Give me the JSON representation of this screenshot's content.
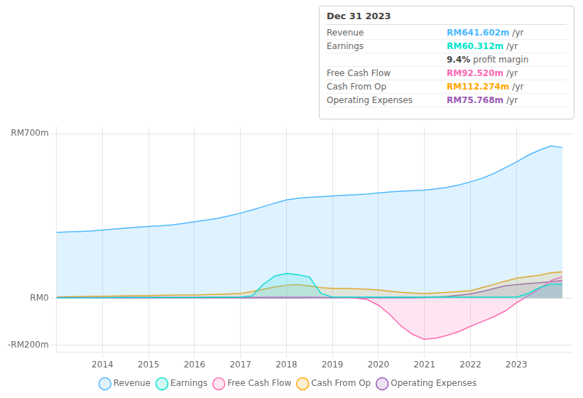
{
  "chart_data": {
    "type": "area",
    "x": [
      2013.0,
      2013.25,
      2013.5,
      2013.75,
      2014.0,
      2014.25,
      2014.5,
      2014.75,
      2015.0,
      2015.25,
      2015.5,
      2015.75,
      2016.0,
      2016.25,
      2016.5,
      2016.75,
      2017.0,
      2017.25,
      2017.5,
      2017.75,
      2018.0,
      2018.25,
      2018.5,
      2018.75,
      2019.0,
      2019.25,
      2019.5,
      2019.75,
      2020.0,
      2020.25,
      2020.5,
      2020.75,
      2021.0,
      2021.25,
      2021.5,
      2021.75,
      2022.0,
      2022.25,
      2022.5,
      2022.75,
      2023.0,
      2023.25,
      2023.5,
      2023.75,
      2024.0
    ],
    "series": [
      {
        "name": "Revenue",
        "color": "#4db8ff",
        "values": [
          280,
          282,
          284,
          286,
          290,
          294,
          298,
          302,
          306,
          308,
          312,
          318,
          325,
          332,
          340,
          350,
          362,
          375,
          390,
          405,
          418,
          425,
          430,
          432,
          435,
          438,
          440,
          443,
          448,
          452,
          455,
          458,
          460,
          465,
          472,
          482,
          495,
          510,
          530,
          555,
          580,
          608,
          630,
          648,
          641
        ]
      },
      {
        "name": "Earnings",
        "color": "#00e5cc",
        "values": [
          2,
          2,
          2,
          2,
          2,
          3,
          3,
          3,
          3,
          3,
          3,
          3,
          3,
          4,
          4,
          4,
          5,
          10,
          60,
          95,
          105,
          100,
          90,
          20,
          5,
          5,
          5,
          5,
          5,
          5,
          5,
          5,
          5,
          5,
          5,
          5,
          5,
          5,
          5,
          5,
          5,
          20,
          45,
          60,
          60
        ]
      },
      {
        "name": "Free Cash Flow",
        "color": "#ff69b4",
        "values": [
          3,
          3,
          3,
          3,
          3,
          3,
          4,
          4,
          4,
          4,
          4,
          4,
          4,
          4,
          4,
          4,
          4,
          4,
          4,
          5,
          5,
          5,
          5,
          4,
          3,
          2,
          0,
          -5,
          -30,
          -70,
          -120,
          -155,
          -175,
          -170,
          -158,
          -142,
          -120,
          -100,
          -80,
          -55,
          -20,
          10,
          40,
          75,
          92
        ]
      },
      {
        "name": "Cash From Op",
        "color": "#ffa500",
        "values": [
          5,
          6,
          7,
          8,
          8,
          9,
          10,
          11,
          11,
          12,
          13,
          14,
          14,
          15,
          16,
          18,
          20,
          28,
          38,
          48,
          55,
          58,
          52,
          45,
          42,
          42,
          40,
          38,
          35,
          30,
          25,
          22,
          20,
          22,
          25,
          28,
          32,
          45,
          58,
          72,
          85,
          92,
          98,
          108,
          112
        ]
      },
      {
        "name": "Operating Expenses",
        "color": "#9b59b6",
        "values": [
          1,
          1,
          1,
          1,
          1,
          1,
          1,
          1,
          1,
          1,
          1,
          1,
          1,
          1,
          1,
          1,
          1,
          1,
          1,
          1,
          1,
          1,
          2,
          2,
          2,
          2,
          2,
          2,
          2,
          2,
          2,
          2,
          3,
          5,
          8,
          12,
          18,
          28,
          40,
          52,
          58,
          62,
          66,
          70,
          75
        ]
      }
    ],
    "xlim": [
      2013.0,
      2024.2
    ],
    "xticks": [
      2014,
      2015,
      2016,
      2017,
      2018,
      2019,
      2020,
      2021,
      2022,
      2023
    ],
    "ylim": [
      -230,
      730
    ],
    "yticks": [
      {
        "value": -200,
        "label": "-RM200m"
      },
      {
        "value": 0,
        "label": "RM0"
      },
      {
        "value": 700,
        "label": "RM700m"
      }
    ],
    "grid": true,
    "legend": "bottom",
    "annotations": [
      {
        "title": "Dec 31 2023",
        "rows": [
          {
            "label": "Revenue",
            "text": "RM641.602m",
            "unit": "/yr",
            "color": "#4db8ff"
          },
          {
            "label": "Earnings",
            "text": "RM60.312m",
            "unit": "/yr",
            "color": "#00e5cc"
          },
          {
            "text": "9.4%",
            "unit": "profit margin"
          },
          {
            "label": "Free Cash Flow",
            "text": "RM92.520m",
            "unit": "/yr",
            "color": "#ff69b4"
          },
          {
            "label": "Cash From Op",
            "text": "RM112.274m",
            "unit": "/yr",
            "color": "#ffa500"
          },
          {
            "label": "Operating Expenses",
            "text": "RM75.768m",
            "unit": "/yr",
            "color": "#9b59b6"
          }
        ]
      }
    ]
  }
}
